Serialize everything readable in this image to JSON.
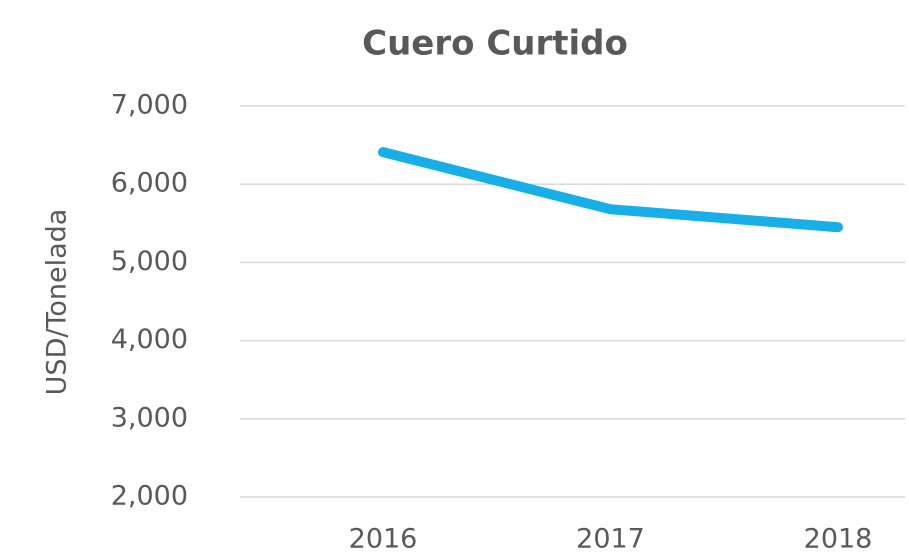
{
  "chart_data": {
    "type": "line",
    "title": "Cuero Curtido",
    "y_label": "USD/Tonelada",
    "categories": [
      "2016",
      "2017",
      "2018"
    ],
    "series": [
      {
        "name": "Cuero Curtido",
        "color": "#18aee8",
        "values": [
          6410,
          5680,
          5450
        ]
      }
    ],
    "ylim": [
      2000,
      7000
    ],
    "yticks": [
      {
        "value": 2000,
        "label": "2,000"
      },
      {
        "value": 3000,
        "label": "3,000"
      },
      {
        "value": 4000,
        "label": "4,000"
      },
      {
        "value": 5000,
        "label": "5,000"
      },
      {
        "value": 6000,
        "label": "6,000"
      },
      {
        "value": 7000,
        "label": "7,000"
      }
    ],
    "grid": true
  }
}
